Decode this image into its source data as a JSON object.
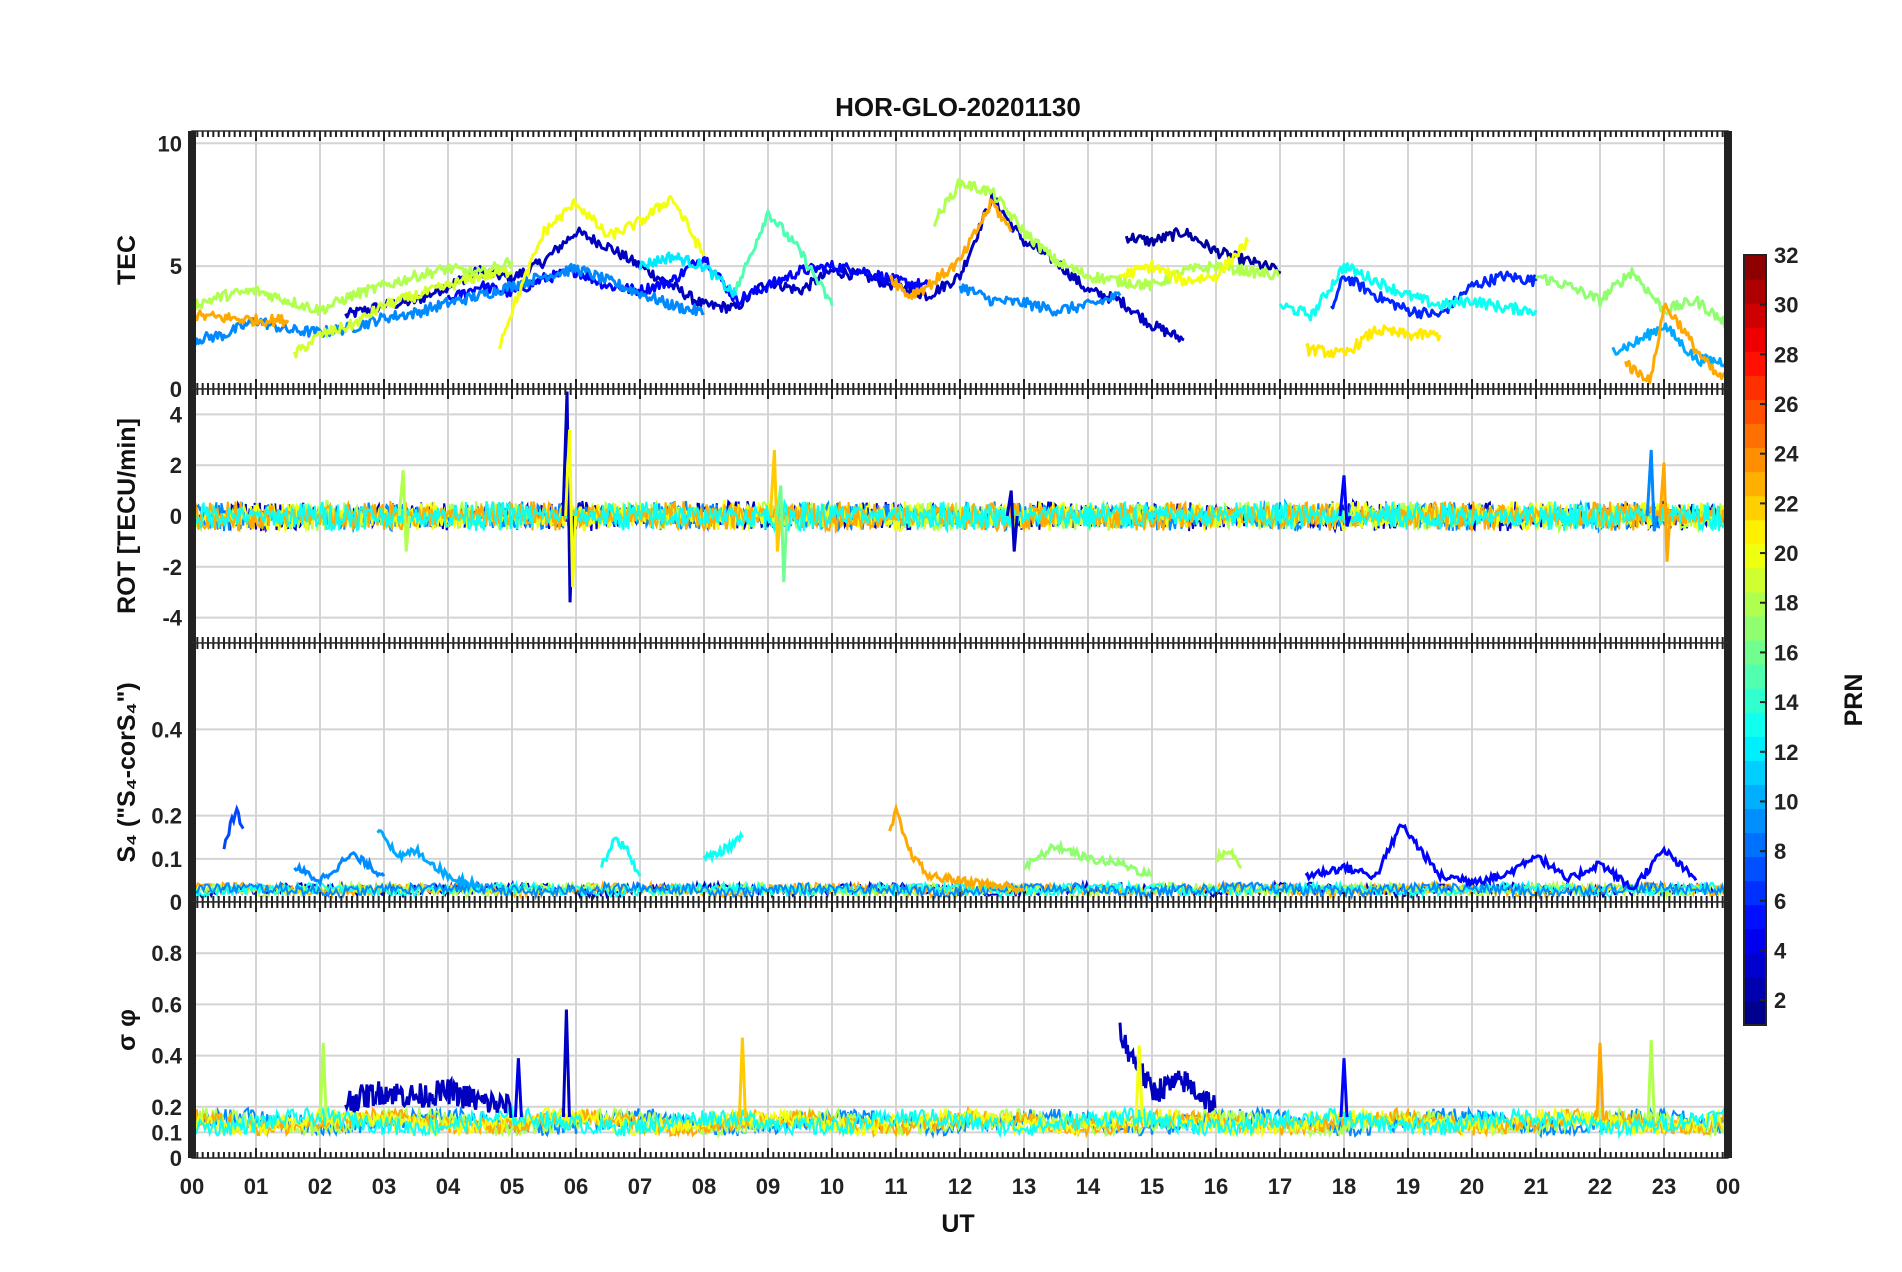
{
  "chart_data": {
    "type": "line",
    "title": "HOR-GLO-20201130",
    "xlabel": "UT",
    "x_range_hours": [
      0,
      24
    ],
    "x_tick_labels": [
      "00",
      "01",
      "02",
      "03",
      "04",
      "05",
      "06",
      "07",
      "08",
      "09",
      "10",
      "11",
      "12",
      "13",
      "14",
      "15",
      "16",
      "17",
      "18",
      "19",
      "20",
      "21",
      "22",
      "23",
      "00"
    ],
    "grid": true,
    "colorbar": {
      "label": "PRN",
      "range": [
        1,
        32
      ],
      "tick_values": [
        2,
        4,
        6,
        8,
        10,
        12,
        14,
        16,
        18,
        20,
        22,
        24,
        26,
        28,
        30,
        32
      ],
      "colormap": "jet"
    },
    "panels": [
      {
        "name": "tec",
        "ylabel": "TEC",
        "ylim": [
          0,
          10.5
        ],
        "y_ticks": [
          0,
          5,
          10
        ],
        "series": [
          {
            "prn": 3,
            "x": [
              2.4,
              3,
              3.5,
              4,
              4.5,
              5,
              5.5,
              6,
              6.5,
              7,
              7.5,
              8,
              8.5,
              9,
              9.5,
              10,
              10.5,
              11,
              11.5,
              12,
              12.5,
              13,
              13.5,
              14,
              14.5,
              15,
              15.5
            ],
            "y": [
              3.0,
              3.4,
              3.6,
              4.2,
              4.8,
              4.5,
              5.2,
              6.4,
              5.8,
              5.0,
              4.2,
              3.4,
              3.3,
              4.4,
              4.0,
              4.8,
              4.6,
              4.2,
              3.8,
              4.6,
              7.8,
              6.0,
              5.2,
              4.0,
              3.6,
              2.6,
              2.0
            ]
          },
          {
            "prn": 2,
            "x": [
              14.6,
              15,
              15.5,
              16,
              16.5,
              17
            ],
            "y": [
              6.2,
              6.0,
              6.4,
              5.6,
              5.2,
              4.8
            ]
          },
          {
            "prn": 5,
            "x": [
              4,
              4.5,
              5,
              5.5,
              6,
              6.5,
              7,
              7.5,
              8,
              8.5,
              9,
              9.5,
              10,
              10.5,
              11,
              11.5
            ],
            "y": [
              3.6,
              4.2,
              3.9,
              4.5,
              4.8,
              4.2,
              4.0,
              4.4,
              5.4,
              3.6,
              4.2,
              4.8,
              5.0,
              4.8,
              4.4,
              4.2
            ]
          },
          {
            "prn": 6,
            "x": [
              17.8,
              18,
              18.5,
              19,
              19.5,
              20,
              20.5,
              21
            ],
            "y": [
              3.2,
              4.6,
              3.8,
              3.2,
              3.0,
              4.2,
              4.6,
              4.4
            ]
          },
          {
            "prn": 9,
            "x": [
              0,
              0.5,
              1,
              1.5,
              2,
              2.5,
              3,
              3.5,
              4,
              4.5,
              5,
              5.5,
              6,
              6.5,
              7,
              7.5,
              8
            ],
            "y": [
              2.0,
              2.2,
              2.8,
              2.4,
              2.3,
              2.5,
              2.9,
              3.1,
              3.5,
              3.8,
              4.2,
              4.6,
              4.9,
              4.4,
              3.9,
              3.4,
              3.1
            ]
          },
          {
            "prn": 9,
            "x": [
              12,
              12.5,
              13,
              13.5,
              14,
              14.5
            ],
            "y": [
              4.2,
              3.6,
              3.5,
              3.2,
              3.4,
              3.8
            ]
          },
          {
            "prn": 10,
            "x": [
              22.2,
              22.5,
              23,
              23.5,
              24
            ],
            "y": [
              1.6,
              1.8,
              2.6,
              1.2,
              1.1
            ]
          },
          {
            "prn": 12,
            "x": [
              7,
              7.5,
              8,
              8.5
            ],
            "y": [
              5.0,
              5.4,
              5.0,
              3.8
            ]
          },
          {
            "prn": 13,
            "x": [
              17,
              17.5,
              18,
              18.5,
              19,
              19.5,
              20,
              20.5,
              21
            ],
            "y": [
              3.4,
              3.0,
              5.0,
              4.4,
              3.8,
              3.4,
              3.6,
              3.3,
              3.2
            ]
          },
          {
            "prn": 15,
            "x": [
              8.5,
              9,
              9.5,
              10
            ],
            "y": [
              4.0,
              7.2,
              5.6,
              3.4
            ]
          },
          {
            "prn": 17,
            "x": [
              21,
              21.5,
              22,
              22.5,
              23,
              23.5,
              24
            ],
            "y": [
              4.6,
              4.2,
              3.6,
              4.8,
              3.2,
              3.6,
              2.6
            ]
          },
          {
            "prn": 18,
            "x": [
              0,
              0.5,
              1,
              1.5,
              2,
              2.5,
              3,
              3.5,
              4,
              4.5,
              5
            ],
            "y": [
              3.4,
              3.8,
              4.0,
              3.6,
              3.2,
              3.8,
              4.2,
              4.6,
              4.9,
              4.7,
              5.2
            ]
          },
          {
            "prn": 18,
            "x": [
              11.6,
              12,
              12.5,
              13,
              13.5,
              14,
              14.5,
              15,
              15.5,
              16,
              16.5,
              17
            ],
            "y": [
              6.8,
              8.4,
              8.0,
              6.4,
              5.2,
              4.6,
              4.4,
              4.2,
              4.8,
              5.0,
              4.8,
              4.6
            ]
          },
          {
            "prn": 19,
            "x": [
              1.6,
              2,
              2.5,
              3,
              3.5,
              4,
              4.5,
              5
            ],
            "y": [
              1.4,
              2.2,
              2.6,
              3.4,
              3.8,
              4.2,
              4.6,
              4.8
            ]
          },
          {
            "prn": 20,
            "x": [
              4.8,
              5,
              5.5,
              6,
              6.5,
              7,
              7.5,
              8
            ],
            "y": [
              1.8,
              3.2,
              6.4,
              7.6,
              6.2,
              6.8,
              7.8,
              5.4
            ]
          },
          {
            "prn": 20,
            "x": [
              14.5,
              15,
              15.5,
              16,
              16.5
            ],
            "y": [
              4.6,
              5.0,
              4.4,
              4.6,
              6.0
            ]
          },
          {
            "prn": 21,
            "x": [
              17.4,
              17.5,
              18,
              18.5,
              19,
              19.5
            ],
            "y": [
              1.6,
              1.6,
              1.4,
              2.4,
              2.2,
              2.2
            ]
          },
          {
            "prn": 23,
            "x": [
              0,
              0.5,
              1,
              1.5
            ],
            "y": [
              3.0,
              2.9,
              2.8,
              2.8
            ]
          },
          {
            "prn": 23,
            "x": [
              10.9,
              11.2,
              11.5,
              12,
              12.5,
              12.8
            ],
            "y": [
              4.6,
              3.8,
              4.2,
              5.2,
              7.6,
              6.4
            ]
          },
          {
            "prn": 23,
            "x": [
              22.4,
              22.5,
              22.8,
              23,
              23.2,
              23.5,
              23.8,
              24
            ],
            "y": [
              1.2,
              0.8,
              0.4,
              3.4,
              2.8,
              1.6,
              0.6,
              0.4
            ]
          }
        ]
      },
      {
        "name": "rot",
        "ylabel": "ROT [TECU/min]",
        "ylim": [
          -5,
          5
        ],
        "y_ticks": [
          -4,
          -2,
          0,
          2,
          4
        ],
        "series": [
          {
            "prn": 3,
            "x": [
              5.86
            ],
            "y": [
              4.9
            ],
            "note_min": [
              -3.4
            ]
          },
          {
            "prn": 20,
            "x": [
              5.9
            ],
            "y": [
              3.4
            ],
            "note_min": [
              -2.8
            ]
          },
          {
            "prn": 22,
            "x": [
              9.1
            ],
            "y": [
              2.6
            ],
            "note_min": [
              -1.4
            ]
          },
          {
            "prn": 16,
            "x": [
              9.2
            ],
            "y": [
              1.2
            ],
            "note_min": [
              -2.6
            ]
          },
          {
            "prn": 18,
            "x": [
              3.3
            ],
            "y": [
              1.8
            ],
            "note_min": [
              -1.4
            ]
          },
          {
            "prn": 23,
            "x": [
              23.0
            ],
            "y": [
              2.1
            ],
            "note_min": [
              -1.8
            ]
          },
          {
            "prn": 9,
            "x": [
              22.8
            ],
            "y": [
              2.6
            ],
            "note_min": [
              -0.6
            ]
          },
          {
            "prn": 5,
            "x": [
              18.0
            ],
            "y": [
              1.6
            ],
            "note_min": [
              -0.4
            ]
          },
          {
            "prn": 3,
            "x": [
              12.8
            ],
            "y": [
              1.0
            ],
            "note_min": [
              -1.4
            ]
          }
        ]
      },
      {
        "name": "s4",
        "ylabel": "S₄ (\"S₄-corS₄\")",
        "ylim": [
          0,
          0.6
        ],
        "y_ticks": [
          0,
          0.1,
          0.2,
          0.4
        ],
        "y_tick_labels": [
          "0",
          "0.1",
          "0.2",
          "0.4"
        ],
        "series": [
          {
            "prn": 7,
            "x": [
              0.5,
              0.6,
              0.7,
              0.8
            ],
            "y": [
              0.12,
              0.18,
              0.21,
              0.17
            ]
          },
          {
            "prn": 9,
            "x": [
              1.6,
              2,
              2.5,
              3
            ],
            "y": [
              0.08,
              0.05,
              0.11,
              0.06
            ]
          },
          {
            "prn": 10,
            "x": [
              2.9,
              3,
              3.2,
              3.5,
              4,
              4.5
            ],
            "y": [
              0.17,
              0.16,
              0.1,
              0.12,
              0.06,
              0.04
            ]
          },
          {
            "prn": 13,
            "x": [
              6.4,
              6.6,
              6.8,
              7
            ],
            "y": [
              0.08,
              0.15,
              0.12,
              0.06
            ]
          },
          {
            "prn": 13,
            "x": [
              8,
              8.3,
              8.6
            ],
            "y": [
              0.1,
              0.12,
              0.15
            ]
          },
          {
            "prn": 23,
            "x": [
              10.9,
              11,
              11.2,
              11.5,
              12,
              12.5,
              13
            ],
            "y": [
              0.16,
              0.21,
              0.12,
              0.06,
              0.05,
              0.04,
              0.03
            ]
          },
          {
            "prn": 17,
            "x": [
              13,
              13.5,
              14,
              14.5,
              15
            ],
            "y": [
              0.08,
              0.13,
              0.1,
              0.09,
              0.06
            ]
          },
          {
            "prn": 18,
            "x": [
              16,
              16.2,
              16.4
            ],
            "y": [
              0.1,
              0.12,
              0.08
            ]
          },
          {
            "prn": 5,
            "x": [
              17.4,
              18,
              18.5,
              18.9,
              19,
              19.5,
              20,
              20.5,
              21,
              21.5,
              22,
              22.5,
              23,
              23.5
            ],
            "y": [
              0.06,
              0.08,
              0.06,
              0.18,
              0.16,
              0.06,
              0.05,
              0.06,
              0.11,
              0.05,
              0.09,
              0.03,
              0.12,
              0.05
            ]
          }
        ]
      },
      {
        "name": "sigma_phi",
        "ylabel": "σ φ",
        "ylim": [
          0,
          1
        ],
        "y_ticks": [
          0,
          0.1,
          0.2,
          0.4,
          0.6,
          0.8
        ],
        "y_tick_labels": [
          "0",
          "0.1",
          "0.2",
          "0.4",
          "0.6",
          "0.8"
        ],
        "series": [
          {
            "prn": 3,
            "x": [
              2.4,
              3,
              3.5,
              4,
              4.5,
              5
            ],
            "y": [
              0.22,
              0.26,
              0.24,
              0.26,
              0.22,
              0.2
            ]
          },
          {
            "prn": 3,
            "x": [
              5.85
            ],
            "y": [
              0.58
            ]
          },
          {
            "prn": 3,
            "x": [
              14.5,
              15,
              15.5,
              16
            ],
            "y": [
              0.48,
              0.26,
              0.3,
              0.2
            ]
          },
          {
            "prn": 22,
            "x": [
              8.6
            ],
            "y": [
              0.47
            ]
          },
          {
            "prn": 18,
            "x": [
              2.05
            ],
            "y": [
              0.45
            ]
          },
          {
            "prn": 18,
            "x": [
              22.8
            ],
            "y": [
              0.46
            ]
          },
          {
            "prn": 23,
            "x": [
              22.0
            ],
            "y": [
              0.45
            ]
          },
          {
            "prn": 20,
            "x": [
              14.8
            ],
            "y": [
              0.44
            ]
          },
          {
            "prn": 4,
            "x": [
              5.1
            ],
            "y": [
              0.39
            ]
          },
          {
            "prn": 5,
            "x": [
              18.0
            ],
            "y": [
              0.39
            ]
          }
        ]
      }
    ]
  }
}
